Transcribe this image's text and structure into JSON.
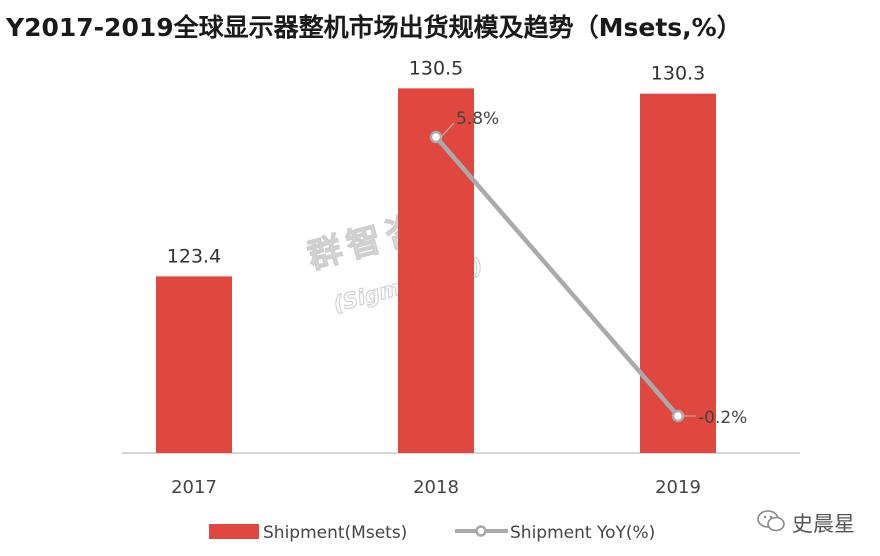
{
  "title": "Y2017-2019全球显示器整机市场出货规模及趋势（Msets,%）",
  "watermark": {
    "line1": "群智咨询",
    "line2": "(Sigmaintell)"
  },
  "brand": "史晨星",
  "colors": {
    "bar": "#e0483f",
    "line": "#a9aaad",
    "marker_fill": "#ffffff"
  },
  "chart_data": {
    "type": "bar",
    "categories": [
      "2017",
      "2018",
      "2019"
    ],
    "series": [
      {
        "name": "Shipment(Msets)",
        "type": "bar",
        "values": [
          123.4,
          130.5,
          130.3
        ],
        "labels": [
          "123.4",
          "130.5",
          "130.3"
        ]
      },
      {
        "name": "Shipment YoY(%)",
        "type": "line",
        "points": [
          {
            "x": "2018",
            "y": 5.8
          },
          {
            "x": "2019",
            "y": -0.2
          }
        ],
        "labels": [
          "5.8%",
          "-0.2%"
        ]
      }
    ],
    "legend_position": "bottom",
    "grid": false
  }
}
